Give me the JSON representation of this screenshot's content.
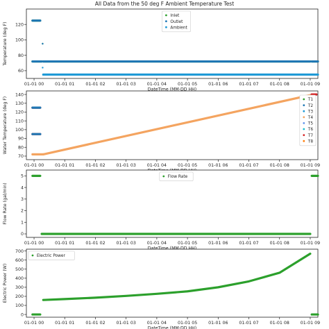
{
  "figure_title": "All Data from the 50 deg F Ambient Temperature Test",
  "colors": {
    "inlet": "#2ca02c",
    "outlet": "#1f77b4",
    "ambient": "#1f9ad6",
    "water": "#f4a460",
    "T1": "#2ca02c",
    "T2": "#1f77b4",
    "T3": "#1f9ad6",
    "T4": "#f4a460",
    "T5": "#6495ed",
    "T6": "#17becf",
    "T7": "#d62728",
    "T8": "#ff7f0e",
    "flow": "#2ca02c",
    "power": "#2ca02c"
  },
  "chart_data": [
    {
      "type": "scatter",
      "title": "All Data from the 50 deg F Ambient Temperature Test",
      "xlabel": "DateTime (MM-DD HH)",
      "ylabel": "Temperature (deg F)",
      "xlim": [
        -0.25,
        9.25
      ],
      "ylim": [
        50,
        140
      ],
      "xticks": [
        "01-01 00",
        "01-01 01",
        "01-01 02",
        "01-01 03",
        "01-01 04",
        "01-01 05",
        "01-01 06",
        "01-01 07",
        "01-01 08",
        "01-01 09"
      ],
      "yticks": [
        60,
        80,
        100,
        120
      ],
      "legend": "top-center",
      "series": [
        {
          "name": "Inlet",
          "color": "#2ca02c",
          "segments": [
            {
              "x0": -0.05,
              "x1": 0.2,
              "y0": 125,
              "y1": 125
            },
            {
              "x0": -0.05,
              "x1": 0.25,
              "y0": 72,
              "y1": 72
            },
            {
              "x0": 0.3,
              "x1": 9.0,
              "y0": 72,
              "y1": 72
            },
            {
              "x0": 9.05,
              "x1": 9.25,
              "y0": 72,
              "y1": 72
            }
          ],
          "points": [
            [
              0.28,
              95
            ]
          ]
        },
        {
          "name": "Outlet",
          "color": "#1f77b4",
          "segments": [
            {
              "x0": -0.05,
              "x1": 0.2,
              "y0": 125,
              "y1": 125
            },
            {
              "x0": -0.05,
              "x1": 0.25,
              "y0": 72,
              "y1": 72
            },
            {
              "x0": 0.3,
              "x1": 9.0,
              "y0": 72,
              "y1": 72
            },
            {
              "x0": 9.05,
              "x1": 9.25,
              "y0": 72,
              "y1": 72
            }
          ],
          "points": [
            [
              0.28,
              95
            ]
          ]
        },
        {
          "name": "Ambient",
          "color": "#1f9ad6",
          "segments": [
            {
              "x0": 0.3,
              "x1": 9.25,
              "y0": 55,
              "y1": 55
            }
          ],
          "points": [
            [
              0.28,
              64
            ]
          ]
        }
      ]
    },
    {
      "type": "scatter",
      "xlabel": "DateTime (MM-DD HH)",
      "ylabel": "Water Temperature (deg F)",
      "xlim": [
        -0.25,
        9.25
      ],
      "ylim": [
        66,
        144
      ],
      "xticks": [
        "01-01 00",
        "01-01 01",
        "01-01 02",
        "01-01 03",
        "01-01 04",
        "01-01 05",
        "01-01 06",
        "01-01 07",
        "01-01 08",
        "01-01 09"
      ],
      "yticks": [
        70,
        80,
        90,
        100,
        110,
        120,
        130,
        140
      ],
      "legend": "right",
      "series": [
        {
          "name": "T1",
          "color": "#2ca02c"
        },
        {
          "name": "T2",
          "color": "#1f77b4"
        },
        {
          "name": "T3",
          "color": "#1f9ad6"
        },
        {
          "name": "T4",
          "color": "#f4a460"
        },
        {
          "name": "T5",
          "color": "#6495ed"
        },
        {
          "name": "T6",
          "color": "#17becf"
        },
        {
          "name": "T7",
          "color": "#d62728"
        },
        {
          "name": "T8",
          "color": "#ff7f0e"
        }
      ],
      "segments": [
        {
          "series": "T4",
          "x0": -0.05,
          "x1": 0.3,
          "y0": 72,
          "y1": 72
        },
        {
          "series": "T4",
          "x0": 0.3,
          "x1": 9.1,
          "y0": 72,
          "y1": 140
        },
        {
          "series": "T7",
          "x0": -0.05,
          "x1": 0.2,
          "y0": 125,
          "y1": 125
        },
        {
          "series": "T2",
          "x0": -0.05,
          "x1": 0.2,
          "y0": 125,
          "y1": 125
        },
        {
          "series": "T7",
          "x0": -0.05,
          "x1": 0.2,
          "y0": 95,
          "y1": 95
        },
        {
          "series": "T2",
          "x0": -0.05,
          "x1": 0.2,
          "y0": 95,
          "y1": 95
        },
        {
          "series": "T2",
          "x0": 9.05,
          "x1": 9.2,
          "y0": 140,
          "y1": 140
        },
        {
          "series": "T7",
          "x0": 9.05,
          "x1": 9.2,
          "y0": 140,
          "y1": 140
        }
      ]
    },
    {
      "type": "scatter",
      "xlabel": "DateTime (MM-DD HH)",
      "ylabel": "Flow Rate (gal/min)",
      "xlim": [
        -0.25,
        9.25
      ],
      "ylim": [
        -0.3,
        5.5
      ],
      "xticks": [
        "01-01 00",
        "01-01 01",
        "01-01 02",
        "01-01 03",
        "01-01 04",
        "01-01 05",
        "01-01 06",
        "01-01 07",
        "01-01 08",
        "01-01 09"
      ],
      "yticks": [
        0,
        1,
        2,
        3,
        4,
        5
      ],
      "legend": "top-center",
      "series": [
        {
          "name": "Flow Rate",
          "color": "#2ca02c",
          "segments": [
            {
              "x0": -0.05,
              "x1": 0.2,
              "y0": 5,
              "y1": 5
            },
            {
              "x0": 0.25,
              "x1": 9.0,
              "y0": 0,
              "y1": 0
            },
            {
              "x0": 9.05,
              "x1": 9.25,
              "y0": 5,
              "y1": 5
            }
          ]
        }
      ]
    },
    {
      "type": "scatter",
      "xlabel": "DateTime (MM-DD HH)",
      "ylabel": "Electric Power (W)",
      "xlim": [
        -0.25,
        9.25
      ],
      "ylim": [
        -30,
        720
      ],
      "xticks": [
        "01-01 00",
        "01-01 01",
        "01-01 02",
        "01-01 03",
        "01-01 04",
        "01-01 05",
        "01-01 06",
        "01-01 07",
        "01-01 08",
        "01-01 09"
      ],
      "yticks": [
        0,
        100,
        200,
        300,
        400,
        500,
        600,
        700
      ],
      "legend": "top-left",
      "series": [
        {
          "name": "Electric Power",
          "color": "#2ca02c",
          "segments": [
            {
              "x0": -0.05,
              "x1": 0.2,
              "y0": 0,
              "y1": 0
            },
            {
              "x0": 9.05,
              "x1": 9.25,
              "y0": 0,
              "y1": 0
            }
          ],
          "curve": {
            "x": [
              0.3,
              1,
              2,
              3,
              4,
              5,
              6,
              7,
              8,
              9.0
            ],
            "y": [
              160,
              170,
              185,
              205,
              228,
              255,
              300,
              365,
              460,
              670
            ]
          }
        }
      ]
    }
  ]
}
